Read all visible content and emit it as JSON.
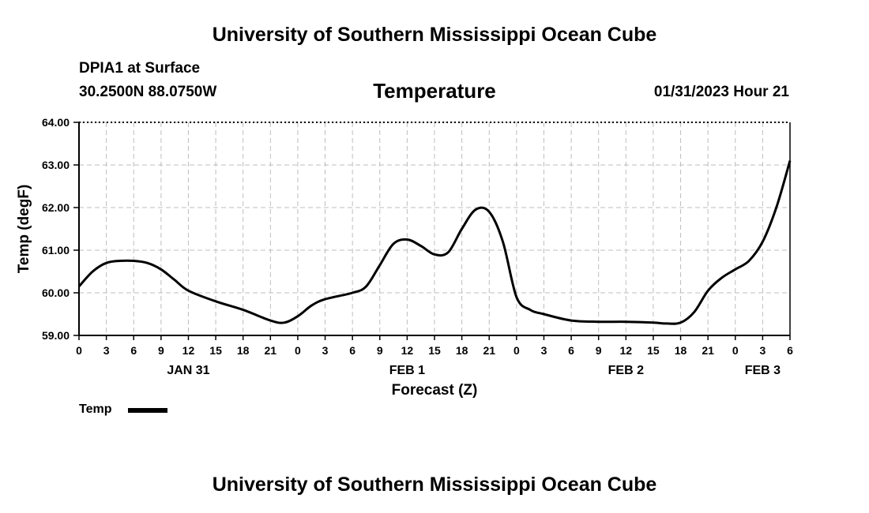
{
  "header": {
    "top_title": "University of Southern Mississippi Ocean Cube",
    "station": "DPIA1 at Surface",
    "coords": "30.2500N  88.0750W",
    "datetime": "01/31/2023 Hour 21",
    "bottom_title": "University of Southern Mississippi Ocean Cube"
  },
  "legend": {
    "label": "Temp",
    "color": "#000000"
  },
  "chart_data": {
    "type": "line",
    "title": "Temperature",
    "xlabel": "Forecast (Z)",
    "ylabel": "Temp (degF)",
    "ylim": [
      59.0,
      64.0
    ],
    "xlim_hours": [
      0,
      78
    ],
    "y_ticks": [
      "59.00",
      "60.00",
      "61.00",
      "62.00",
      "63.00",
      "64.00"
    ],
    "y_tick_values": [
      59,
      60,
      61,
      62,
      63,
      64
    ],
    "x_ticks": [
      "0",
      "3",
      "6",
      "9",
      "12",
      "15",
      "18",
      "21",
      "0",
      "3",
      "6",
      "9",
      "12",
      "15",
      "18",
      "21",
      "0",
      "3",
      "6",
      "9",
      "12",
      "15",
      "18",
      "21",
      "0",
      "3",
      "6"
    ],
    "date_labels": [
      {
        "label": "JAN 31",
        "hour": 12
      },
      {
        "label": "FEB 1",
        "hour": 36
      },
      {
        "label": "FEB 2",
        "hour": 60
      },
      {
        "label": "FEB 3",
        "hour": 75
      }
    ],
    "grid": true,
    "series": [
      {
        "name": "Temp",
        "x": [
          0,
          1.5,
          3,
          4.5,
          6,
          7.5,
          9,
          10.5,
          12,
          15,
          18,
          21,
          22.5,
          24,
          25.5,
          27,
          30,
          31.5,
          33,
          34.5,
          36,
          37.5,
          39,
          40.5,
          42,
          43.5,
          45,
          46.5,
          48,
          49.5,
          51,
          54,
          57,
          60,
          63,
          64.5,
          66,
          67.5,
          69,
          70.5,
          72,
          73.5,
          75,
          76.5,
          78
        ],
        "values": [
          60.15,
          60.5,
          60.7,
          60.75,
          60.75,
          60.7,
          60.55,
          60.3,
          60.05,
          59.8,
          59.6,
          59.35,
          59.3,
          59.45,
          59.7,
          59.85,
          60.0,
          60.15,
          60.65,
          61.15,
          61.25,
          61.1,
          60.9,
          60.95,
          61.5,
          61.95,
          61.9,
          61.2,
          59.9,
          59.6,
          59.5,
          59.35,
          59.32,
          59.32,
          59.3,
          59.28,
          59.3,
          59.55,
          60.05,
          60.35,
          60.55,
          60.75,
          61.2,
          62.0,
          63.1
        ]
      }
    ]
  }
}
